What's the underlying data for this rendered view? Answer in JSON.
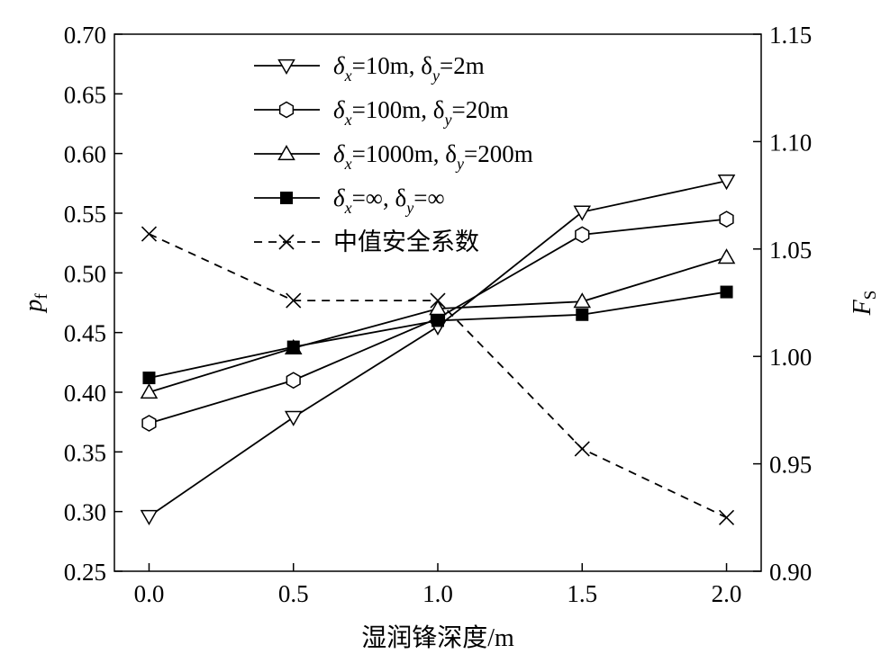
{
  "chart_data": {
    "type": "line",
    "x": [
      0.0,
      0.5,
      1.0,
      1.5,
      2.0
    ],
    "x_tick_labels": [
      "0.0",
      "0.5",
      "1.0",
      "1.5",
      "2.0"
    ],
    "xlim": [
      -0.12,
      2.12
    ],
    "xlabel": "湿润锋深度/m",
    "y_left": {
      "label_main": "p",
      "label_sub": "f",
      "lim": [
        0.25,
        0.7
      ],
      "ticks": [
        "0.25",
        "0.30",
        "0.35",
        "0.40",
        "0.45",
        "0.50",
        "0.55",
        "0.60",
        "0.65",
        "0.70"
      ]
    },
    "y_right": {
      "label_main": "F",
      "label_sub": "S",
      "lim": [
        0.9,
        1.15
      ],
      "ticks": [
        "0.90",
        "0.95",
        "1.00",
        "1.05",
        "1.10",
        "1.15"
      ]
    },
    "grid": false,
    "legend_position": "top-left",
    "series": [
      {
        "legend": {
          "pre": "δ",
          "sub1": "x",
          "mid": "=10m, δ",
          "sub2": "y",
          "post": "=2m"
        },
        "axis": "left",
        "marker": "triangle-down",
        "line": "solid",
        "color": "#000000",
        "values": [
          0.296,
          0.379,
          0.455,
          0.551,
          0.577
        ]
      },
      {
        "legend": {
          "pre": "δ",
          "sub1": "x",
          "mid": "=100m, δ",
          "sub2": "y",
          "post": "=20m"
        },
        "axis": "left",
        "marker": "hexagon",
        "line": "solid",
        "color": "#000000",
        "values": [
          0.374,
          0.41,
          0.462,
          0.532,
          0.545
        ]
      },
      {
        "legend": {
          "pre": "δ",
          "sub1": "x",
          "mid": "=1000m, δ",
          "sub2": "y",
          "post": "=200m"
        },
        "axis": "left",
        "marker": "triangle-up",
        "line": "solid",
        "color": "#000000",
        "values": [
          0.4,
          0.437,
          0.47,
          0.476,
          0.513
        ]
      },
      {
        "legend": {
          "pre": "δ",
          "sub1": "x",
          "mid": "=∞, δ",
          "sub2": "y",
          "post": "=∞"
        },
        "axis": "left",
        "marker": "square-filled",
        "line": "solid",
        "color": "#000000",
        "values": [
          0.412,
          0.438,
          0.46,
          0.465,
          0.484
        ]
      },
      {
        "legend": {
          "text": "中值安全系数"
        },
        "axis": "right",
        "marker": "x",
        "line": "dashed",
        "color": "#000000",
        "values": [
          1.057,
          1.026,
          1.026,
          0.957,
          0.925
        ]
      }
    ]
  }
}
